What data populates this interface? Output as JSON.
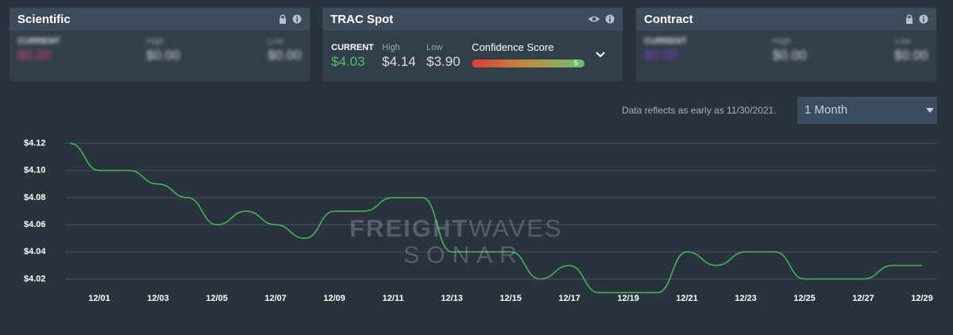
{
  "panels": [
    {
      "title": "Scientific",
      "current_label": "CURRENT",
      "current": "$0.00",
      "high_label": "High",
      "high": "$0.00",
      "low_label": "Low",
      "low": "$0.00"
    },
    {
      "title": "TRAC Spot",
      "current_label": "CURRENT",
      "current": "$4.03",
      "high_label": "High",
      "high": "$4.14",
      "low_label": "Low",
      "low": "$3.90",
      "confidence_label": "Confidence Score",
      "confidence": 5
    },
    {
      "title": "Contract",
      "current_label": "CURRENT",
      "current": "$0.00",
      "high_label": "High",
      "high": "$0.00",
      "low_label": "Low",
      "low": "$0.00"
    }
  ],
  "note": "Data reflects as early as 11/30/2021.",
  "range_select": "1 Month",
  "watermark": {
    "brand_bold": "FREIGHT",
    "brand_light": "WAVES",
    "product": "SONAR"
  },
  "chart_data": {
    "type": "line",
    "categories": [
      null,
      "12/01",
      null,
      "12/03",
      null,
      "12/05",
      null,
      "12/07",
      null,
      "12/09",
      null,
      "12/11",
      null,
      "12/13",
      null,
      "12/15",
      null,
      "12/17",
      null,
      "12/19",
      null,
      "12/21",
      null,
      "12/23",
      null,
      "12/25",
      null,
      "12/27",
      null,
      "12/29"
    ],
    "values": [
      4.12,
      4.1,
      4.1,
      4.09,
      4.08,
      4.06,
      4.07,
      4.06,
      4.05,
      4.07,
      4.07,
      4.08,
      4.08,
      4.04,
      4.04,
      4.04,
      4.02,
      4.03,
      4.01,
      4.01,
      4.01,
      4.04,
      4.03,
      4.04,
      4.04,
      4.02,
      4.02,
      4.02,
      4.03,
      4.03
    ],
    "color": "#46b05a",
    "ylim": [
      4.008,
      4.125
    ],
    "yticks": [
      {
        "value": 4.02,
        "label": "$4.02"
      },
      {
        "value": 4.04,
        "label": "$4.04"
      },
      {
        "value": 4.06,
        "label": "$4.06"
      },
      {
        "value": 4.08,
        "label": "$4.08"
      },
      {
        "value": 4.1,
        "label": "$4.10"
      },
      {
        "value": 4.12,
        "label": "$4.12"
      }
    ],
    "grid": true
  }
}
